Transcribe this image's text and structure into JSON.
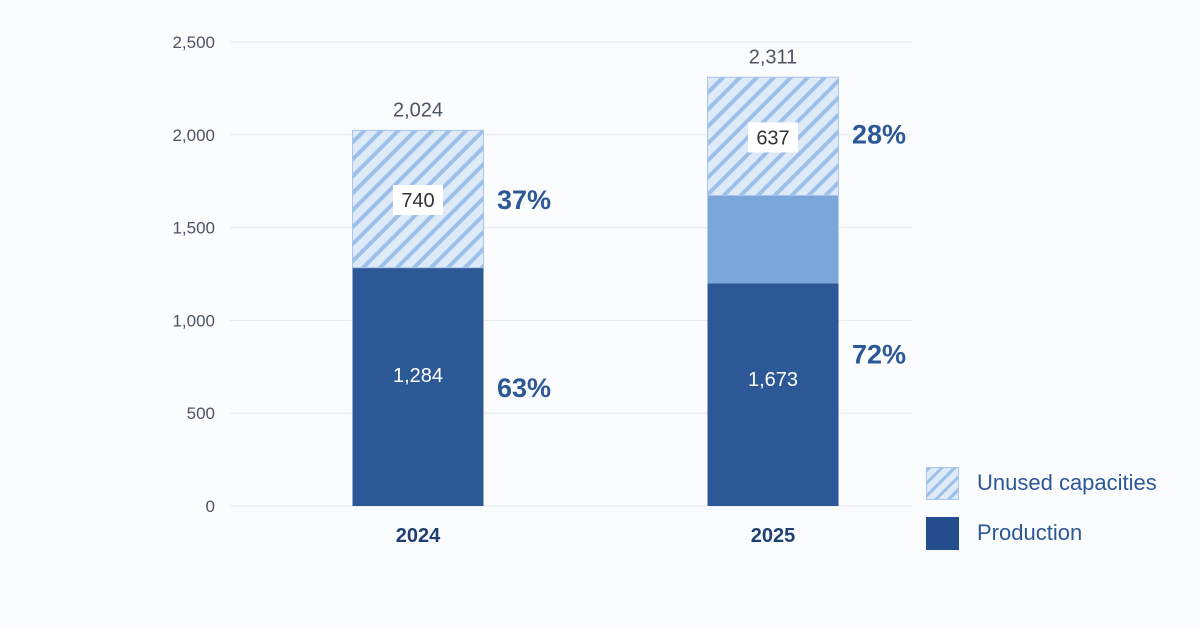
{
  "chart_data": {
    "type": "bar",
    "stacked": true,
    "categories": [
      "2024",
      "2025"
    ],
    "ylim": [
      0,
      2500
    ],
    "yticks": [
      0,
      500,
      1000,
      1500,
      2000,
      2500
    ],
    "ytick_labels": [
      "0",
      "500",
      "1,000",
      "1,500",
      "2,000",
      "2,500"
    ],
    "grid": true,
    "legend_position": "bottom-right",
    "series": [
      {
        "name": "Production",
        "values": [
          1284,
          1673
        ],
        "value_labels": [
          "1,284",
          "1,673"
        ],
        "percent_labels": [
          "63%",
          "72%"
        ],
        "color": "#2c5896"
      },
      {
        "name": "Unused capacities",
        "values": [
          740,
          637
        ],
        "value_labels": [
          "740",
          "637"
        ],
        "percent_labels": [
          "37%",
          "28%"
        ],
        "color": "#9cc0ea"
      }
    ],
    "totals": [
      2024,
      2311
    ],
    "total_labels": [
      "2,024",
      "2,311"
    ],
    "colors": {
      "production_top_2025": "#7aa6da",
      "hatch_light": "#dfeaf8",
      "hatch_dark": "#9cc0ea",
      "grid": "#e6e9ef"
    }
  },
  "legend": {
    "items": [
      {
        "label": "Unused capacities",
        "swatch": "hatch"
      },
      {
        "label": "Production",
        "swatch": "solid"
      }
    ]
  }
}
